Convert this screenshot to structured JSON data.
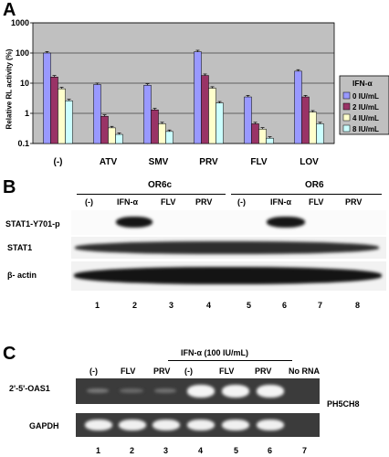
{
  "panel_a": {
    "letter": "A",
    "chart_data": {
      "type": "bar",
      "categories": [
        "(-)",
        "ATV",
        "SMV",
        "PRV",
        "FLV",
        "LOV"
      ],
      "series": [
        {
          "name": "0 IU/mL",
          "color": "#9999ff",
          "values": [
            100,
            9,
            8.5,
            110,
            3.5,
            25
          ]
        },
        {
          "name": "2 IU/mL",
          "color": "#993366",
          "values": [
            16,
            0.8,
            1.3,
            18,
            0.45,
            3.5
          ]
        },
        {
          "name": "4 IU/mL",
          "color": "#ffffcc",
          "values": [
            6.5,
            0.33,
            0.45,
            6.8,
            0.3,
            1.1
          ]
        },
        {
          "name": "8 IU/mL",
          "color": "#ccffff",
          "values": [
            2.6,
            0.2,
            0.25,
            2.2,
            0.15,
            0.45
          ]
        }
      ],
      "ylabel": "Relative RL activity (%)",
      "yscale": "log",
      "ylim": [
        0.1,
        1000
      ],
      "yticks": [
        "0.1",
        "1",
        "10",
        "100",
        "1000"
      ],
      "legend_title": "IFN-α",
      "legend_position": "right",
      "background": "#c0c0c0"
    }
  },
  "panel_b": {
    "letter": "B",
    "group_1": "OR6c",
    "group_2": "OR6",
    "lanes": [
      "(-)",
      "IFN-α",
      "FLV",
      "PRV",
      "(-)",
      "IFN-α",
      "FLV",
      "PRV"
    ],
    "rows": [
      "STAT1-Y701-p",
      "STAT1",
      "β- actin"
    ],
    "numbers": [
      "1",
      "2",
      "3",
      "4",
      "5",
      "6",
      "7",
      "8"
    ]
  },
  "panel_c": {
    "letter": "C",
    "treatment": "IFN-α (100 IU/mL)",
    "lanes": [
      "(-)",
      "FLV",
      "PRV",
      "(-)",
      "FLV",
      "PRV",
      "No RNA"
    ],
    "rows": [
      "2'-5'-OAS1",
      "GAPDH"
    ],
    "cell_line": "PH5CH8",
    "numbers": [
      "1",
      "2",
      "3",
      "4",
      "5",
      "6",
      "7"
    ]
  }
}
